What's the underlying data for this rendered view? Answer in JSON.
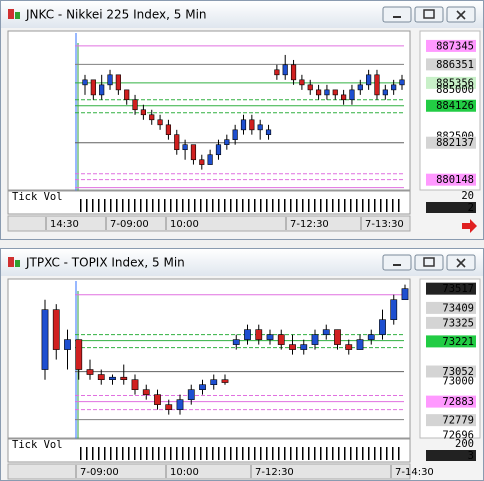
{
  "windows": [
    {
      "title": "JNKC - Nikkei 225 Index, 5 Min",
      "chart": {
        "type": "candlestick",
        "ylim": [
          879700,
          888040
        ],
        "price_labels": [
          {
            "value": 887345,
            "style": "pink"
          },
          {
            "value": 886351,
            "style": "gray"
          },
          {
            "value": 885356,
            "style": "lightgreen"
          },
          {
            "value": 885000,
            "style": "plain"
          },
          {
            "value": 884126,
            "style": "green"
          },
          {
            "value": 882500,
            "style": "plain"
          },
          {
            "value": 882137,
            "style": "gray"
          },
          {
            "value": 880148,
            "style": "pink"
          }
        ],
        "levels": [
          {
            "value": 887345,
            "color": "#e070e0",
            "dashed": false
          },
          {
            "value": 886351,
            "color": "#808080",
            "dashed": false
          },
          {
            "value": 885356,
            "color": "#30b040",
            "dashed": false
          },
          {
            "value": 884448,
            "color": "#30b040",
            "dashed": true
          },
          {
            "value": 884126,
            "color": "#30b040",
            "dashed": false
          },
          {
            "value": 883750,
            "color": "#30b040",
            "dashed": true
          },
          {
            "value": 882137,
            "color": "#606060",
            "dashed": false
          },
          {
            "value": 880470,
            "color": "#e070e0",
            "dashed": true
          },
          {
            "value": 880148,
            "color": "#e070e0",
            "dashed": true
          },
          {
            "value": 879719,
            "color": "#e070e0",
            "dashed": false
          }
        ],
        "candles": [
          {
            "o": 885250,
            "h": 885790,
            "l": 884710,
            "c": 885520
          },
          {
            "o": 885520,
            "h": 885520,
            "l": 884450,
            "c": 884710
          },
          {
            "o": 884710,
            "h": 885790,
            "l": 884450,
            "c": 885250
          },
          {
            "o": 885250,
            "h": 886060,
            "l": 884980,
            "c": 885790
          },
          {
            "o": 885790,
            "h": 885790,
            "l": 884710,
            "c": 884980
          },
          {
            "o": 884980,
            "h": 884980,
            "l": 884180,
            "c": 884450
          },
          {
            "o": 884450,
            "h": 884710,
            "l": 883640,
            "c": 883910
          },
          {
            "o": 883910,
            "h": 884180,
            "l": 883370,
            "c": 883640
          },
          {
            "o": 883640,
            "h": 883910,
            "l": 883100,
            "c": 883370
          },
          {
            "o": 883370,
            "h": 883640,
            "l": 882830,
            "c": 883100
          },
          {
            "o": 883100,
            "h": 883370,
            "l": 882300,
            "c": 882570
          },
          {
            "o": 882570,
            "h": 882830,
            "l": 881490,
            "c": 881760
          },
          {
            "o": 881760,
            "h": 882300,
            "l": 881220,
            "c": 882030
          },
          {
            "o": 882030,
            "h": 882030,
            "l": 880960,
            "c": 881220
          },
          {
            "o": 881220,
            "h": 881490,
            "l": 880690,
            "c": 880960
          },
          {
            "o": 880960,
            "h": 881760,
            "l": 880960,
            "c": 881490
          },
          {
            "o": 881490,
            "h": 882300,
            "l": 881220,
            "c": 882030
          },
          {
            "o": 882030,
            "h": 882570,
            "l": 881760,
            "c": 882300
          },
          {
            "o": 882300,
            "h": 883100,
            "l": 882030,
            "c": 882830
          },
          {
            "o": 882830,
            "h": 883640,
            "l": 882570,
            "c": 883370
          },
          {
            "o": 883370,
            "h": 883640,
            "l": 882570,
            "c": 882830
          },
          {
            "o": 882830,
            "h": 883370,
            "l": 882300,
            "c": 883100
          },
          {
            "o": 882570,
            "h": 883100,
            "l": 882300,
            "c": 882830
          },
          {
            "o": 886060,
            "h": 886330,
            "l": 885520,
            "c": 885790
          },
          {
            "o": 885790,
            "h": 886860,
            "l": 885520,
            "c": 886330
          },
          {
            "o": 886330,
            "h": 886590,
            "l": 885250,
            "c": 885520
          },
          {
            "o": 885520,
            "h": 885790,
            "l": 884980,
            "c": 885250
          },
          {
            "o": 885250,
            "h": 885520,
            "l": 884710,
            "c": 884980
          },
          {
            "o": 884980,
            "h": 885250,
            "l": 884450,
            "c": 884710
          },
          {
            "o": 884710,
            "h": 885250,
            "l": 884450,
            "c": 884980
          },
          {
            "o": 884980,
            "h": 884980,
            "l": 884450,
            "c": 884710
          },
          {
            "o": 884710,
            "h": 884980,
            "l": 884180,
            "c": 884450
          },
          {
            "o": 884450,
            "h": 885250,
            "l": 884180,
            "c": 884980
          },
          {
            "o": 884980,
            "h": 885520,
            "l": 884710,
            "c": 885250
          },
          {
            "o": 885250,
            "h": 886060,
            "l": 884980,
            "c": 885790
          },
          {
            "o": 885790,
            "h": 886060,
            "l": 884450,
            "c": 884710
          },
          {
            "o": 884710,
            "h": 885250,
            "l": 884450,
            "c": 884980
          },
          {
            "o": 884980,
            "h": 885520,
            "l": 884710,
            "c": 885250
          },
          {
            "o": 885250,
            "h": 885790,
            "l": 884980,
            "c": 885520
          }
        ],
        "volume_label": "Tick Vol",
        "volume_scale": [
          20,
          2
        ],
        "time_labels": [
          "14:30",
          "7-09:00",
          "10:00",
          "7-12:30",
          "7-13:30"
        ]
      }
    },
    {
      "title": "JTPXC - TOPIX Index, 5 Min",
      "chart": {
        "type": "candlestick",
        "ylim": [
          72690,
          73560
        ],
        "price_labels": [
          {
            "value": 73517,
            "style": "dark"
          },
          {
            "value": 73409,
            "style": "gray"
          },
          {
            "value": 73325,
            "style": "gray"
          },
          {
            "value": 73221,
            "style": "green"
          },
          {
            "value": 73052,
            "style": "gray"
          },
          {
            "value": 73000,
            "style": "plain"
          },
          {
            "value": 72883,
            "style": "pink"
          },
          {
            "value": 72779,
            "style": "gray"
          },
          {
            "value": 72696,
            "style": "plain"
          }
        ],
        "levels": [
          {
            "value": 73483,
            "color": "#e070e0",
            "dashed": false
          },
          {
            "value": 73259,
            "color": "#30b040",
            "dashed": true
          },
          {
            "value": 73225,
            "color": "#30b040",
            "dashed": false
          },
          {
            "value": 73186,
            "color": "#30b040",
            "dashed": true
          },
          {
            "value": 73051,
            "color": "#606060",
            "dashed": false
          },
          {
            "value": 72917,
            "color": "#e070e0",
            "dashed": true
          },
          {
            "value": 72883,
            "color": "#e070e0",
            "dashed": false
          },
          {
            "value": 72838,
            "color": "#e070e0",
            "dashed": true
          },
          {
            "value": 72782,
            "color": "#808080",
            "dashed": false
          }
        ],
        "candles": [
          {
            "o": 73063,
            "h": 73455,
            "l": 73006,
            "c": 73399
          },
          {
            "o": 73399,
            "h": 73430,
            "l": 73119,
            "c": 73175
          },
          {
            "o": 73175,
            "h": 73287,
            "l": 73063,
            "c": 73231
          },
          {
            "o": 73231,
            "h": 73231,
            "l": 73006,
            "c": 73063
          },
          {
            "o": 73063,
            "h": 73119,
            "l": 73006,
            "c": 73035
          },
          {
            "o": 73035,
            "h": 73063,
            "l": 72978,
            "c": 73006
          },
          {
            "o": 73006,
            "h": 73035,
            "l": 72978,
            "c": 73020
          },
          {
            "o": 73020,
            "h": 73091,
            "l": 72978,
            "c": 73006
          },
          {
            "o": 73006,
            "h": 73035,
            "l": 72922,
            "c": 72950
          },
          {
            "o": 72950,
            "h": 72978,
            "l": 72894,
            "c": 72922
          },
          {
            "o": 72922,
            "h": 72950,
            "l": 72838,
            "c": 72866
          },
          {
            "o": 72866,
            "h": 72894,
            "l": 72810,
            "c": 72838
          },
          {
            "o": 72838,
            "h": 72922,
            "l": 72810,
            "c": 72894
          },
          {
            "o": 72894,
            "h": 72978,
            "l": 72866,
            "c": 72950
          },
          {
            "o": 72950,
            "h": 73006,
            "l": 72922,
            "c": 72978
          },
          {
            "o": 72978,
            "h": 73035,
            "l": 72950,
            "c": 73006
          },
          {
            "o": 73006,
            "h": 73035,
            "l": 72978,
            "c": 72990
          },
          {
            "o": 73203,
            "h": 73259,
            "l": 73175,
            "c": 73231
          },
          {
            "o": 73231,
            "h": 73315,
            "l": 73203,
            "c": 73287
          },
          {
            "o": 73287,
            "h": 73315,
            "l": 73203,
            "c": 73231
          },
          {
            "o": 73231,
            "h": 73287,
            "l": 73203,
            "c": 73259
          },
          {
            "o": 73259,
            "h": 73287,
            "l": 73175,
            "c": 73203
          },
          {
            "o": 73203,
            "h": 73259,
            "l": 73147,
            "c": 73175
          },
          {
            "o": 73175,
            "h": 73231,
            "l": 73147,
            "c": 73203
          },
          {
            "o": 73203,
            "h": 73287,
            "l": 73175,
            "c": 73259
          },
          {
            "o": 73259,
            "h": 73315,
            "l": 73231,
            "c": 73287
          },
          {
            "o": 73287,
            "h": 73287,
            "l": 73175,
            "c": 73203
          },
          {
            "o": 73203,
            "h": 73231,
            "l": 73147,
            "c": 73175
          },
          {
            "o": 73175,
            "h": 73259,
            "l": 73175,
            "c": 73231
          },
          {
            "o": 73231,
            "h": 73287,
            "l": 73203,
            "c": 73259
          },
          {
            "o": 73259,
            "h": 73399,
            "l": 73231,
            "c": 73343
          },
          {
            "o": 73343,
            "h": 73483,
            "l": 73315,
            "c": 73455
          },
          {
            "o": 73455,
            "h": 73540,
            "l": 73455,
            "c": 73517
          }
        ],
        "volume_label": "Tick Vol",
        "volume_scale": [
          200,
          3
        ],
        "time_labels": [
          "7-09:00",
          "10:00",
          "7-12:30",
          "7-14:30"
        ]
      }
    }
  ]
}
